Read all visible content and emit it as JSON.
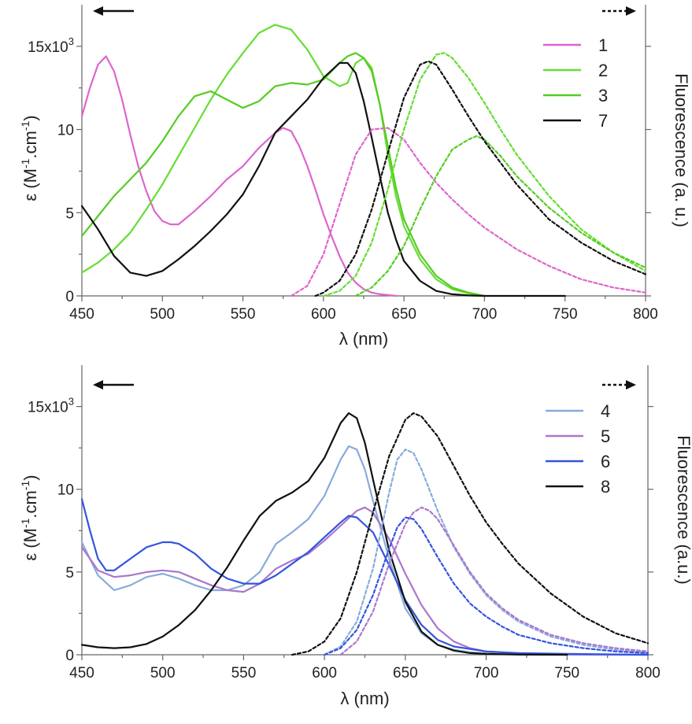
{
  "chart_data": [
    {
      "type": "line",
      "xlabel": "λ (nm)",
      "ylabel_left": "ε (M⁻¹.cm⁻¹)",
      "ylabel_right": "Fluorescence (a. u.)",
      "xlim": [
        450,
        800
      ],
      "ylim": [
        0,
        17500
      ],
      "x_ticks": [
        450,
        500,
        550,
        600,
        650,
        700,
        750,
        800
      ],
      "x_tick_labels": [
        "450",
        "500",
        "550",
        "600",
        "650",
        "700",
        "750",
        "800"
      ],
      "y_ticks": [
        0,
        5000,
        10000,
        15000
      ],
      "y_tick_labels": [
        "0",
        "5",
        "10",
        "15x10³"
      ],
      "right_ticks": [
        0,
        5000,
        10000,
        15000
      ],
      "legend_position": "top-right",
      "series": [
        {
          "name": "1",
          "kind": "absorption",
          "color": "#dd66cc",
          "x": [
            450,
            455,
            460,
            465,
            470,
            475,
            480,
            485,
            490,
            495,
            500,
            505,
            510,
            520,
            530,
            540,
            550,
            560,
            570,
            575,
            580,
            585,
            590,
            595,
            600,
            605,
            610,
            615,
            620,
            625,
            630,
            635,
            640,
            645
          ],
          "y": [
            10800,
            12500,
            13900,
            14400,
            13500,
            11800,
            9700,
            7800,
            6300,
            5100,
            4500,
            4300,
            4300,
            5100,
            6000,
            7000,
            7800,
            8900,
            9800,
            10100,
            9900,
            9000,
            7800,
            6400,
            4900,
            3600,
            2400,
            1400,
            800,
            400,
            200,
            100,
            50,
            0
          ]
        },
        {
          "name": "2",
          "kind": "absorption",
          "color": "#66dd33",
          "x": [
            450,
            460,
            470,
            480,
            490,
            500,
            510,
            520,
            530,
            540,
            550,
            560,
            570,
            580,
            590,
            600,
            610,
            615,
            620,
            625,
            630,
            635,
            640,
            645,
            650,
            660,
            670,
            680,
            690,
            700
          ],
          "y": [
            1400,
            2000,
            2800,
            3800,
            5200,
            6700,
            8400,
            10100,
            11800,
            13300,
            14600,
            15800,
            16300,
            16000,
            14800,
            13200,
            12600,
            12800,
            14000,
            14300,
            13700,
            11500,
            8500,
            6000,
            4200,
            2200,
            1000,
            400,
            150,
            0
          ]
        },
        {
          "name": "3",
          "kind": "absorption",
          "color": "#55cc22",
          "x": [
            450,
            460,
            470,
            480,
            490,
            500,
            510,
            520,
            530,
            540,
            550,
            560,
            570,
            580,
            590,
            600,
            610,
            615,
            620,
            625,
            630,
            635,
            640,
            645,
            650,
            660,
            670,
            680,
            690,
            700
          ],
          "y": [
            3600,
            4800,
            6000,
            7000,
            8000,
            9300,
            10800,
            12000,
            12300,
            11800,
            11300,
            11700,
            12600,
            12800,
            12700,
            13000,
            14000,
            14400,
            14600,
            14300,
            13500,
            11500,
            9000,
            6500,
            4600,
            2500,
            1200,
            500,
            200,
            0
          ]
        },
        {
          "name": "7",
          "kind": "absorption",
          "color": "#111111",
          "x": [
            450,
            460,
            470,
            480,
            490,
            500,
            510,
            520,
            530,
            540,
            550,
            560,
            570,
            580,
            590,
            600,
            610,
            615,
            620,
            625,
            630,
            635,
            640,
            645,
            650,
            660,
            670,
            680,
            690,
            700,
            720,
            750
          ],
          "y": [
            5400,
            4000,
            2400,
            1400,
            1200,
            1500,
            2200,
            3000,
            3900,
            4900,
            6100,
            7800,
            9800,
            10800,
            11800,
            13100,
            14000,
            14000,
            13400,
            11700,
            9500,
            7200,
            5000,
            3400,
            2100,
            900,
            300,
            100,
            30,
            0,
            0,
            0
          ]
        },
        {
          "name": "1",
          "kind": "fluorescence",
          "color": "#dd66cc",
          "x": [
            580,
            590,
            600,
            610,
            620,
            630,
            640,
            650,
            660,
            670,
            680,
            690,
            700,
            720,
            740,
            760,
            780,
            800
          ],
          "y": [
            0,
            600,
            2500,
            5500,
            8500,
            10000,
            10100,
            9400,
            8000,
            6800,
            5800,
            4900,
            4100,
            2800,
            1800,
            1000,
            500,
            200
          ]
        },
        {
          "name": "2",
          "kind": "fluorescence",
          "color": "#66dd33",
          "x": [
            600,
            610,
            620,
            630,
            640,
            650,
            660,
            670,
            675,
            680,
            690,
            700,
            710,
            720,
            740,
            760,
            780,
            800
          ],
          "y": [
            0,
            300,
            1200,
            3200,
            6400,
            10000,
            13000,
            14500,
            14600,
            14300,
            13100,
            11600,
            10000,
            8500,
            6000,
            4000,
            2600,
            1500
          ]
        },
        {
          "name": "3",
          "kind": "fluorescence",
          "color": "#55cc22",
          "x": [
            620,
            630,
            640,
            650,
            660,
            670,
            680,
            690,
            695,
            700,
            710,
            720,
            740,
            760,
            780,
            800
          ],
          "y": [
            0,
            500,
            1500,
            3000,
            5200,
            7200,
            8800,
            9400,
            9600,
            9400,
            8400,
            7200,
            5300,
            3800,
            2600,
            1700
          ]
        },
        {
          "name": "7",
          "kind": "fluorescence",
          "color": "#111111",
          "x": [
            595,
            600,
            610,
            620,
            630,
            640,
            650,
            660,
            665,
            670,
            680,
            690,
            700,
            710,
            720,
            740,
            760,
            780,
            800
          ],
          "y": [
            0,
            200,
            900,
            2500,
            5200,
            8600,
            11900,
            13900,
            14100,
            13900,
            12400,
            10800,
            9300,
            8000,
            6700,
            4600,
            3200,
            2100,
            1300
          ]
        }
      ]
    },
    {
      "type": "line",
      "xlabel": "λ (nm)",
      "ylabel_left": "ε (M⁻¹.cm⁻¹)",
      "ylabel_right": "Fluorescence (a.u.)",
      "xlim": [
        450,
        800
      ],
      "ylim": [
        0,
        17500
      ],
      "x_ticks": [
        450,
        500,
        550,
        600,
        650,
        700,
        750,
        800
      ],
      "x_tick_labels": [
        "450",
        "500",
        "550",
        "600",
        "650",
        "700",
        "750",
        "800"
      ],
      "y_ticks": [
        0,
        5000,
        10000,
        15000
      ],
      "y_tick_labels": [
        "0",
        "5",
        "10",
        "15x10³"
      ],
      "right_ticks": [
        0,
        5000,
        10000,
        15000
      ],
      "legend_position": "top-right",
      "series": [
        {
          "name": "4",
          "kind": "absorption",
          "color": "#88aadd",
          "x": [
            450,
            460,
            470,
            480,
            490,
            500,
            510,
            520,
            530,
            540,
            550,
            560,
            570,
            580,
            590,
            600,
            610,
            615,
            620,
            625,
            630,
            640,
            650,
            660,
            670,
            680,
            690,
            700,
            720,
            750,
            800
          ],
          "y": [
            6800,
            4800,
            3900,
            4200,
            4700,
            4900,
            4600,
            4200,
            3900,
            3900,
            4200,
            5000,
            6700,
            7400,
            8200,
            9600,
            11800,
            12600,
            12400,
            11200,
            9300,
            5800,
            2800,
            1300,
            600,
            300,
            150,
            80,
            20,
            0,
            0
          ]
        },
        {
          "name": "5",
          "kind": "absorption",
          "color": "#aa77cc",
          "x": [
            450,
            460,
            470,
            480,
            490,
            500,
            510,
            520,
            530,
            540,
            550,
            560,
            570,
            580,
            590,
            600,
            610,
            620,
            625,
            630,
            640,
            650,
            660,
            670,
            680,
            690,
            700,
            720,
            750,
            800
          ],
          "y": [
            6500,
            5100,
            4700,
            4800,
            5000,
            5100,
            5000,
            4600,
            4200,
            3900,
            3800,
            4300,
            5200,
            5700,
            6100,
            6900,
            7800,
            8700,
            8900,
            8600,
            7000,
            4900,
            3000,
            1600,
            800,
            400,
            200,
            80,
            20,
            0
          ]
        },
        {
          "name": "6",
          "kind": "absorption",
          "color": "#3355dd",
          "x": [
            450,
            455,
            460,
            465,
            470,
            480,
            490,
            500,
            505,
            510,
            520,
            530,
            540,
            550,
            560,
            570,
            580,
            590,
            600,
            610,
            615,
            620,
            630,
            640,
            650,
            660,
            670,
            680,
            700,
            720,
            750,
            800
          ],
          "y": [
            9400,
            7500,
            5800,
            5100,
            5100,
            5800,
            6500,
            6800,
            6800,
            6700,
            6100,
            5200,
            4600,
            4300,
            4300,
            4800,
            5500,
            6200,
            7100,
            8000,
            8400,
            8300,
            7400,
            5400,
            3300,
            1800,
            900,
            500,
            200,
            100,
            50,
            0
          ]
        },
        {
          "name": "8",
          "kind": "absorption",
          "color": "#111111",
          "x": [
            450,
            460,
            470,
            480,
            490,
            500,
            510,
            520,
            530,
            540,
            550,
            560,
            570,
            580,
            590,
            600,
            610,
            615,
            620,
            625,
            630,
            640,
            650,
            660,
            670,
            680,
            690,
            700,
            720,
            750
          ],
          "y": [
            600,
            450,
            400,
            450,
            650,
            1100,
            1800,
            2700,
            3900,
            5300,
            6900,
            8400,
            9300,
            9800,
            10500,
            11900,
            14000,
            14600,
            14300,
            12800,
            10600,
            6300,
            3200,
            1400,
            600,
            250,
            100,
            50,
            10,
            0
          ]
        },
        {
          "name": "4",
          "kind": "fluorescence",
          "color": "#88aadd",
          "x": [
            600,
            610,
            620,
            630,
            640,
            645,
            650,
            655,
            660,
            670,
            680,
            690,
            700,
            710,
            720,
            740,
            760,
            780,
            800
          ],
          "y": [
            0,
            500,
            2000,
            5200,
            9800,
            11800,
            12400,
            12200,
            11200,
            8700,
            6500,
            4900,
            3600,
            2700,
            2000,
            1100,
            600,
            300,
            150
          ]
        },
        {
          "name": "5",
          "kind": "fluorescence",
          "color": "#aa77cc",
          "x": [
            610,
            620,
            630,
            640,
            650,
            655,
            660,
            665,
            670,
            680,
            690,
            700,
            710,
            720,
            740,
            760,
            780,
            800
          ],
          "y": [
            0,
            800,
            2600,
            5500,
            7900,
            8600,
            8900,
            8700,
            8200,
            6600,
            5000,
            3700,
            2800,
            2100,
            1200,
            700,
            400,
            200
          ]
        },
        {
          "name": "6",
          "kind": "fluorescence",
          "color": "#3355dd",
          "x": [
            600,
            610,
            620,
            630,
            640,
            645,
            650,
            655,
            660,
            670,
            680,
            690,
            700,
            710,
            720,
            740,
            760,
            780,
            800
          ],
          "y": [
            0,
            400,
            1500,
            3600,
            6400,
            7700,
            8300,
            8200,
            7600,
            5900,
            4300,
            3100,
            2300,
            1700,
            1200,
            700,
            400,
            200,
            100
          ]
        },
        {
          "name": "8",
          "kind": "fluorescence",
          "color": "#111111",
          "x": [
            580,
            590,
            600,
            610,
            620,
            630,
            640,
            650,
            655,
            660,
            670,
            680,
            690,
            700,
            710,
            720,
            740,
            760,
            780,
            800
          ],
          "y": [
            0,
            200,
            800,
            2200,
            5000,
            8600,
            12000,
            14200,
            14600,
            14400,
            13200,
            11400,
            9600,
            8000,
            6700,
            5500,
            3700,
            2300,
            1300,
            700
          ]
        }
      ]
    }
  ]
}
